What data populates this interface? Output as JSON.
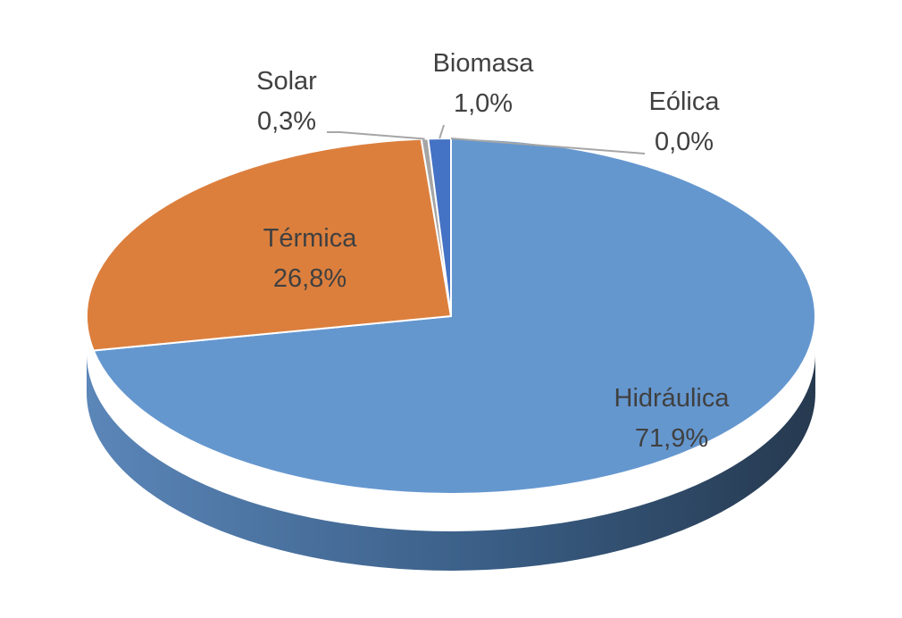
{
  "chart_data": {
    "type": "pie",
    "title": "",
    "slices": [
      {
        "label": "Hidráulica",
        "value": 71.9,
        "value_label": "71,9%",
        "color": "#6597cf"
      },
      {
        "label": "Térmica",
        "value": 26.8,
        "value_label": "26,8%",
        "color": "#dc7f3d"
      },
      {
        "label": "Solar",
        "value": 0.3,
        "value_label": "0,3%",
        "color": "#a5a5a5"
      },
      {
        "label": "Biomasa",
        "value": 1.0,
        "value_label": "1,0%",
        "color": "#4472c4"
      },
      {
        "label": "Eólica",
        "value": 0.0,
        "value_label": "0,0%",
        "color": "#ffc000"
      }
    ],
    "label_color": "#404040",
    "leader_line_color": "#a6a6a6",
    "legend": "none",
    "style": "3d"
  }
}
